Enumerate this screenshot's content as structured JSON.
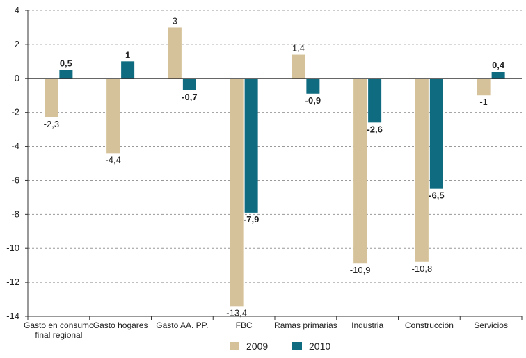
{
  "chart_data": {
    "type": "bar",
    "categories": [
      [
        "Gasto en consumo",
        "final regional"
      ],
      [
        "Gasto hogares"
      ],
      [
        "Gasto AA. PP."
      ],
      [
        "FBC"
      ],
      [
        "Ramas primarias"
      ],
      [
        "Industria"
      ],
      [
        "Construcción"
      ],
      [
        "Servicios"
      ]
    ],
    "series": [
      {
        "name": "2009",
        "color": "#d6c29a",
        "values": [
          -2.3,
          -4.4,
          3,
          -13.4,
          1.4,
          -10.9,
          -10.8,
          -1
        ],
        "labels": [
          "-2,3",
          "-4,4",
          "3",
          "-13,4",
          "1,4",
          "-10,9",
          "-10,8",
          "-1"
        ],
        "label_weight": "normal"
      },
      {
        "name": "2010",
        "color": "#0f6b80",
        "values": [
          0.5,
          1,
          -0.7,
          -7.9,
          -0.9,
          -2.6,
          -6.5,
          0.4
        ],
        "labels": [
          "0,5",
          "1",
          "-0,7",
          "-7,9",
          "-0,9",
          "-2,6",
          "-6,5",
          "0,4"
        ],
        "label_weight": "bold"
      }
    ],
    "ylim": [
      -14,
      4
    ],
    "yticks": [
      4,
      2,
      0,
      -2,
      -4,
      -6,
      -8,
      -10,
      -12,
      -14
    ],
    "ytick_labels": [
      "4",
      "2",
      "0",
      "-2",
      "-4",
      "-6",
      "-8",
      "-10",
      "-12",
      "-14"
    ],
    "grid": "dashed-horizontal",
    "legend_position": "bottom-center",
    "title": "",
    "xlabel": "",
    "ylabel": ""
  }
}
